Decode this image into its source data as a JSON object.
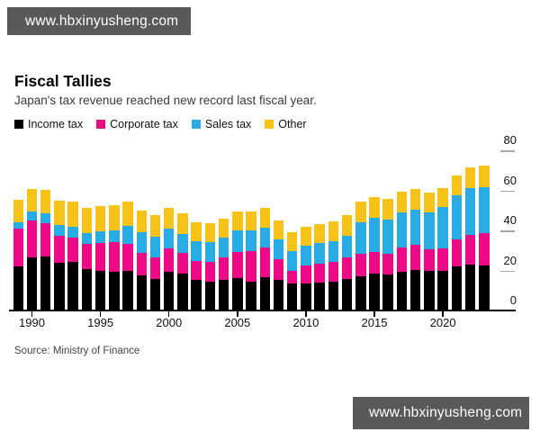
{
  "watermark": {
    "text": "www.hbxinyusheng.com"
  },
  "header": {
    "title": "Fiscal Tallies",
    "subtitle": "Japan's tax revenue reached new record last fiscal year."
  },
  "source": "Source: Ministry of Finance",
  "colors": {
    "income_tax": "#000000",
    "corporate_tax": "#ee0a86",
    "sales_tax": "#29abe5",
    "other": "#f7c319",
    "watermark_bg": "#58595b"
  },
  "chart_data": {
    "type": "bar",
    "stacked": true,
    "title": "Fiscal Tallies",
    "subtitle": "Japan's tax revenue reached new record last fiscal year.",
    "x": [
      1989,
      1990,
      1991,
      1992,
      1993,
      1994,
      1995,
      1996,
      1997,
      1998,
      1999,
      2000,
      2001,
      2002,
      2003,
      2004,
      2005,
      2006,
      2007,
      2008,
      2009,
      2010,
      2011,
      2012,
      2013,
      2014,
      2015,
      2016,
      2017,
      2018,
      2019,
      2020,
      2021,
      2022,
      2023
    ],
    "series": [
      {
        "name": "Income tax",
        "color": "#000000",
        "values": [
          21.4,
          26.0,
          26.7,
          23.2,
          23.7,
          20.4,
          19.5,
          19.0,
          19.2,
          17.0,
          15.4,
          18.8,
          17.8,
          14.8,
          13.9,
          14.7,
          15.6,
          14.1,
          16.1,
          15.0,
          12.9,
          13.0,
          13.5,
          14.0,
          15.5,
          16.8,
          17.8,
          17.6,
          18.9,
          19.9,
          19.2,
          19.2,
          21.4,
          22.5,
          22.1
        ]
      },
      {
        "name": "Corporate tax",
        "color": "#ee0a86",
        "values": [
          19.0,
          18.4,
          16.6,
          13.7,
          12.1,
          12.4,
          13.7,
          14.5,
          13.5,
          11.4,
          10.8,
          11.7,
          10.3,
          9.5,
          10.1,
          11.4,
          13.3,
          14.9,
          14.7,
          10.0,
          6.4,
          9.0,
          9.4,
          9.8,
          10.5,
          11.0,
          10.8,
          10.3,
          12.0,
          12.3,
          10.8,
          11.2,
          13.6,
          14.9,
          15.9
        ]
      },
      {
        "name": "Sales tax",
        "color": "#29abe5",
        "values": [
          3.3,
          4.6,
          5.0,
          5.2,
          5.6,
          5.6,
          5.8,
          6.1,
          9.3,
          10.1,
          10.4,
          9.8,
          9.8,
          9.8,
          9.7,
          10.0,
          10.6,
          10.5,
          10.3,
          10.0,
          9.8,
          10.0,
          10.2,
          10.4,
          10.8,
          16.0,
          17.4,
          17.2,
          17.5,
          17.7,
          18.4,
          21.0,
          21.9,
          23.1,
          23.1
        ]
      },
      {
        "name": "Other",
        "color": "#f7c319",
        "values": [
          11.2,
          11.1,
          11.5,
          12.3,
          12.7,
          12.6,
          12.9,
          12.5,
          11.9,
          10.9,
          10.6,
          10.4,
          10.0,
          9.7,
          9.6,
          9.5,
          9.6,
          9.6,
          9.9,
          9.3,
          9.6,
          9.5,
          9.7,
          9.8,
          10.2,
          10.2,
          10.3,
          10.4,
          10.4,
          10.5,
          10.1,
          9.4,
          10.1,
          10.6,
          11.0
        ]
      }
    ],
    "ylim": [
      0,
      80
    ],
    "yticks": [
      0,
      20,
      40,
      60,
      80
    ],
    "ytick_side": "right",
    "xticks": [
      1990,
      1995,
      2000,
      2005,
      2010,
      2015,
      2020
    ],
    "grid": false,
    "legend_position": "top-left",
    "source": "Source: Ministry of Finance"
  }
}
